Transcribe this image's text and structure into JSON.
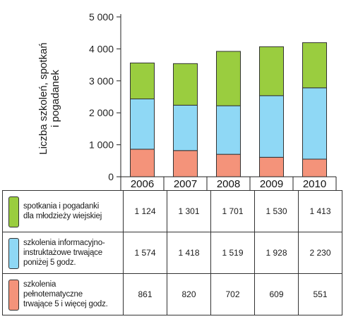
{
  "chart_data": {
    "type": "bar",
    "stacked": true,
    "categories": [
      "2006",
      "2007",
      "2008",
      "2009",
      "2010"
    ],
    "series": [
      {
        "name": "szkolenia pełnotematyczne trwające 5 i więcej godz.",
        "values": [
          861,
          820,
          702,
          609,
          551
        ],
        "color": "#f4937a",
        "display": [
          "861",
          "820",
          "702",
          "609",
          "551"
        ]
      },
      {
        "name": "szkolenia informacyjno-instruktażowe trwające poniżej 5 godz.",
        "values": [
          1574,
          1418,
          1519,
          1928,
          2230
        ],
        "color": "#8fd8f5",
        "display": [
          "1 574",
          "1 418",
          "1 519",
          "1 928",
          "2 230"
        ]
      },
      {
        "name": "spotkania i pogadanki dla młodzieży wiejskiej",
        "values": [
          1124,
          1301,
          1701,
          1530,
          1413
        ],
        "color": "#9acd3f",
        "display": [
          "1 124",
          "1 301",
          "1 701",
          "1 530",
          "1 413"
        ]
      }
    ],
    "ylabel_lines": [
      "Liczba szkoleń, spotkań",
      "i pogadanek"
    ],
    "ylim": [
      0,
      5000
    ],
    "yticks": [
      0,
      1000,
      2000,
      3000,
      4000,
      5000
    ],
    "ytick_labels": [
      "0",
      "1 000",
      "2 000",
      "3 000",
      "4 000",
      "5 000"
    ],
    "grid": false,
    "legend": "table-below"
  },
  "legend_rows": [
    {
      "label_lines": [
        "spotkania i pogadanki",
        "dla młodzieży wiejskiej"
      ],
      "series_index": 2,
      "color": "#9acd3f"
    },
    {
      "label_lines": [
        "szkolenia informacyjno-",
        "instruktażowe trwające",
        "poniżej 5 godz."
      ],
      "series_index": 1,
      "color": "#8fd8f5"
    },
    {
      "label_lines": [
        "szkolenia",
        "pełnotematyczne",
        "trwające 5 i więcej godz."
      ],
      "series_index": 0,
      "color": "#f4937a"
    }
  ]
}
